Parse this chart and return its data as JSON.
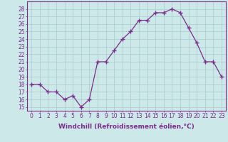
{
  "x": [
    0,
    1,
    2,
    3,
    4,
    5,
    6,
    7,
    8,
    9,
    10,
    11,
    12,
    13,
    14,
    15,
    16,
    17,
    18,
    19,
    20,
    21,
    22,
    23
  ],
  "y": [
    18,
    18,
    17,
    17,
    16,
    16.5,
    15,
    16,
    21,
    21,
    22.5,
    24,
    25,
    26.5,
    26.5,
    27.5,
    27.5,
    28,
    27.5,
    25.5,
    23.5,
    21,
    21,
    19
  ],
  "line_color": "#7b2d8b",
  "marker": "+",
  "marker_size": 4,
  "bg_color": "#cce8e8",
  "grid_color": "#aacccc",
  "xlabel": "Windchill (Refroidissement éolien,°C)",
  "xlabel_fontsize": 6.5,
  "ylabel_ticks": [
    15,
    16,
    17,
    18,
    19,
    20,
    21,
    22,
    23,
    24,
    25,
    26,
    27,
    28
  ],
  "xtick_labels": [
    "0",
    "1",
    "2",
    "3",
    "4",
    "5",
    "6",
    "7",
    "8",
    "9",
    "10",
    "11",
    "12",
    "13",
    "14",
    "15",
    "16",
    "17",
    "18",
    "19",
    "20",
    "21",
    "22",
    "23"
  ],
  "ylim": [
    14.5,
    29.0
  ],
  "xlim": [
    -0.5,
    23.5
  ],
  "tick_fontsize": 5.5,
  "spine_color": "#7b2d8b"
}
